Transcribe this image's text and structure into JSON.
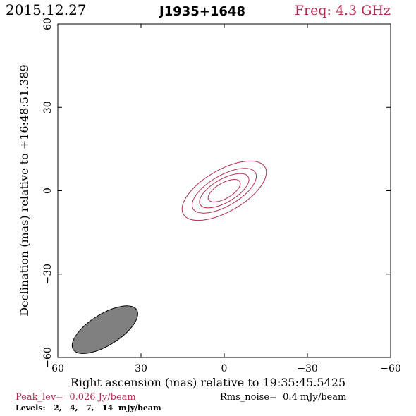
{
  "header": {
    "date": "2015.12.27",
    "source": "J1935+1648",
    "freq": "Freq: 4.3 GHz"
  },
  "footer": {
    "peak": "Peak_lev=  0.026 Jy/beam",
    "rms": "Rms_noise=  0.4 mJy/beam",
    "levels": "Levels:   2,   4,   7,   14  mJy/beam"
  },
  "colors": {
    "accent": "#b03050",
    "frame": "#000000",
    "beam_fill": "#808080"
  },
  "chart_data": {
    "type": "contour",
    "xlabel": "Right ascension (mas) relative to 19:35:45.5425",
    "ylabel": "Declination (mas) relative to +16:48:51.389",
    "xlim": [
      60,
      -60
    ],
    "ylim": [
      -60,
      60
    ],
    "x_ticks": [
      60,
      30,
      0,
      -30,
      -60
    ],
    "y_ticks": [
      -60,
      -30,
      0,
      30,
      60
    ],
    "x_tick_labels": [
      "60",
      "30",
      "0",
      "−30",
      "−60"
    ],
    "y_tick_labels": [
      "−60",
      "−30",
      "0",
      "30",
      "60"
    ],
    "levels_mjy": [
      2,
      4,
      7,
      14
    ],
    "contours": [
      {
        "level": 2,
        "center": [
          0,
          0
        ],
        "semi_major": 17,
        "semi_minor": 7.5,
        "pa_deg": 60
      },
      {
        "level": 4,
        "center": [
          0,
          0
        ],
        "semi_major": 13,
        "semi_minor": 5.5,
        "pa_deg": 60
      },
      {
        "level": 7,
        "center": [
          0,
          0
        ],
        "semi_major": 10,
        "semi_minor": 4.2,
        "pa_deg": 60
      },
      {
        "level": 14,
        "center": [
          0,
          0
        ],
        "semi_major": 6.5,
        "semi_minor": 2.8,
        "pa_deg": 60
      }
    ],
    "beam": {
      "center": [
        43,
        -50
      ],
      "major": 15,
      "minor": 7,
      "pa_deg": 58
    }
  }
}
